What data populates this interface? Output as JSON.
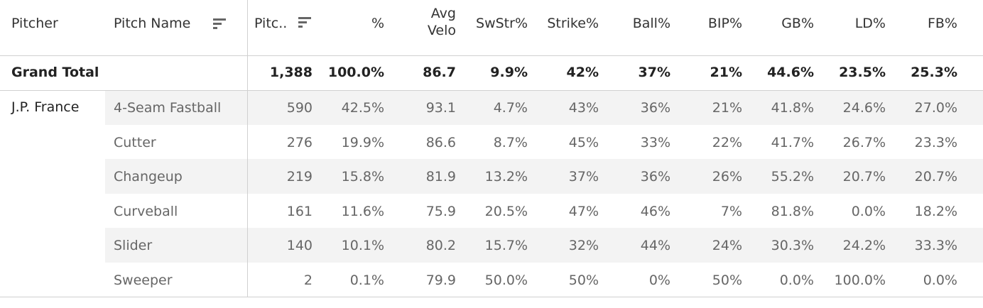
{
  "table": {
    "headers": [
      "Pitcher",
      "Pitch Name",
      "Pitc..",
      "%",
      "Avg Velo",
      "SwStr%",
      "Strike%",
      "Ball%",
      "BIP%",
      "GB%",
      "LD%",
      "FB%"
    ],
    "grand_total": {
      "label": "Grand Total",
      "values": [
        "1,388",
        "100.0%",
        "86.7",
        "9.9%",
        "42%",
        "37%",
        "21%",
        "44.6%",
        "23.5%",
        "25.3%"
      ]
    },
    "pitcher": "J.P. France",
    "rows": [
      {
        "pitch": "4-Seam Fastball",
        "values": [
          "590",
          "42.5%",
          "93.1",
          "4.7%",
          "43%",
          "36%",
          "21%",
          "41.8%",
          "24.6%",
          "27.0%"
        ]
      },
      {
        "pitch": "Cutter",
        "values": [
          "276",
          "19.9%",
          "86.6",
          "8.7%",
          "45%",
          "33%",
          "22%",
          "41.7%",
          "26.7%",
          "23.3%"
        ]
      },
      {
        "pitch": "Changeup",
        "values": [
          "219",
          "15.8%",
          "81.9",
          "13.2%",
          "37%",
          "36%",
          "26%",
          "55.2%",
          "20.7%",
          "20.7%"
        ]
      },
      {
        "pitch": "Curveball",
        "values": [
          "161",
          "11.6%",
          "75.9",
          "20.5%",
          "47%",
          "46%",
          "7%",
          "81.8%",
          "0.0%",
          "18.2%"
        ]
      },
      {
        "pitch": "Slider",
        "values": [
          "140",
          "10.1%",
          "80.2",
          "15.7%",
          "32%",
          "44%",
          "24%",
          "30.3%",
          "24.2%",
          "33.3%"
        ]
      },
      {
        "pitch": "Sweeper",
        "values": [
          "2",
          "0.1%",
          "79.9",
          "50.0%",
          "50%",
          "0%",
          "50%",
          "0.0%",
          "100.0%",
          "0.0%"
        ]
      }
    ]
  }
}
